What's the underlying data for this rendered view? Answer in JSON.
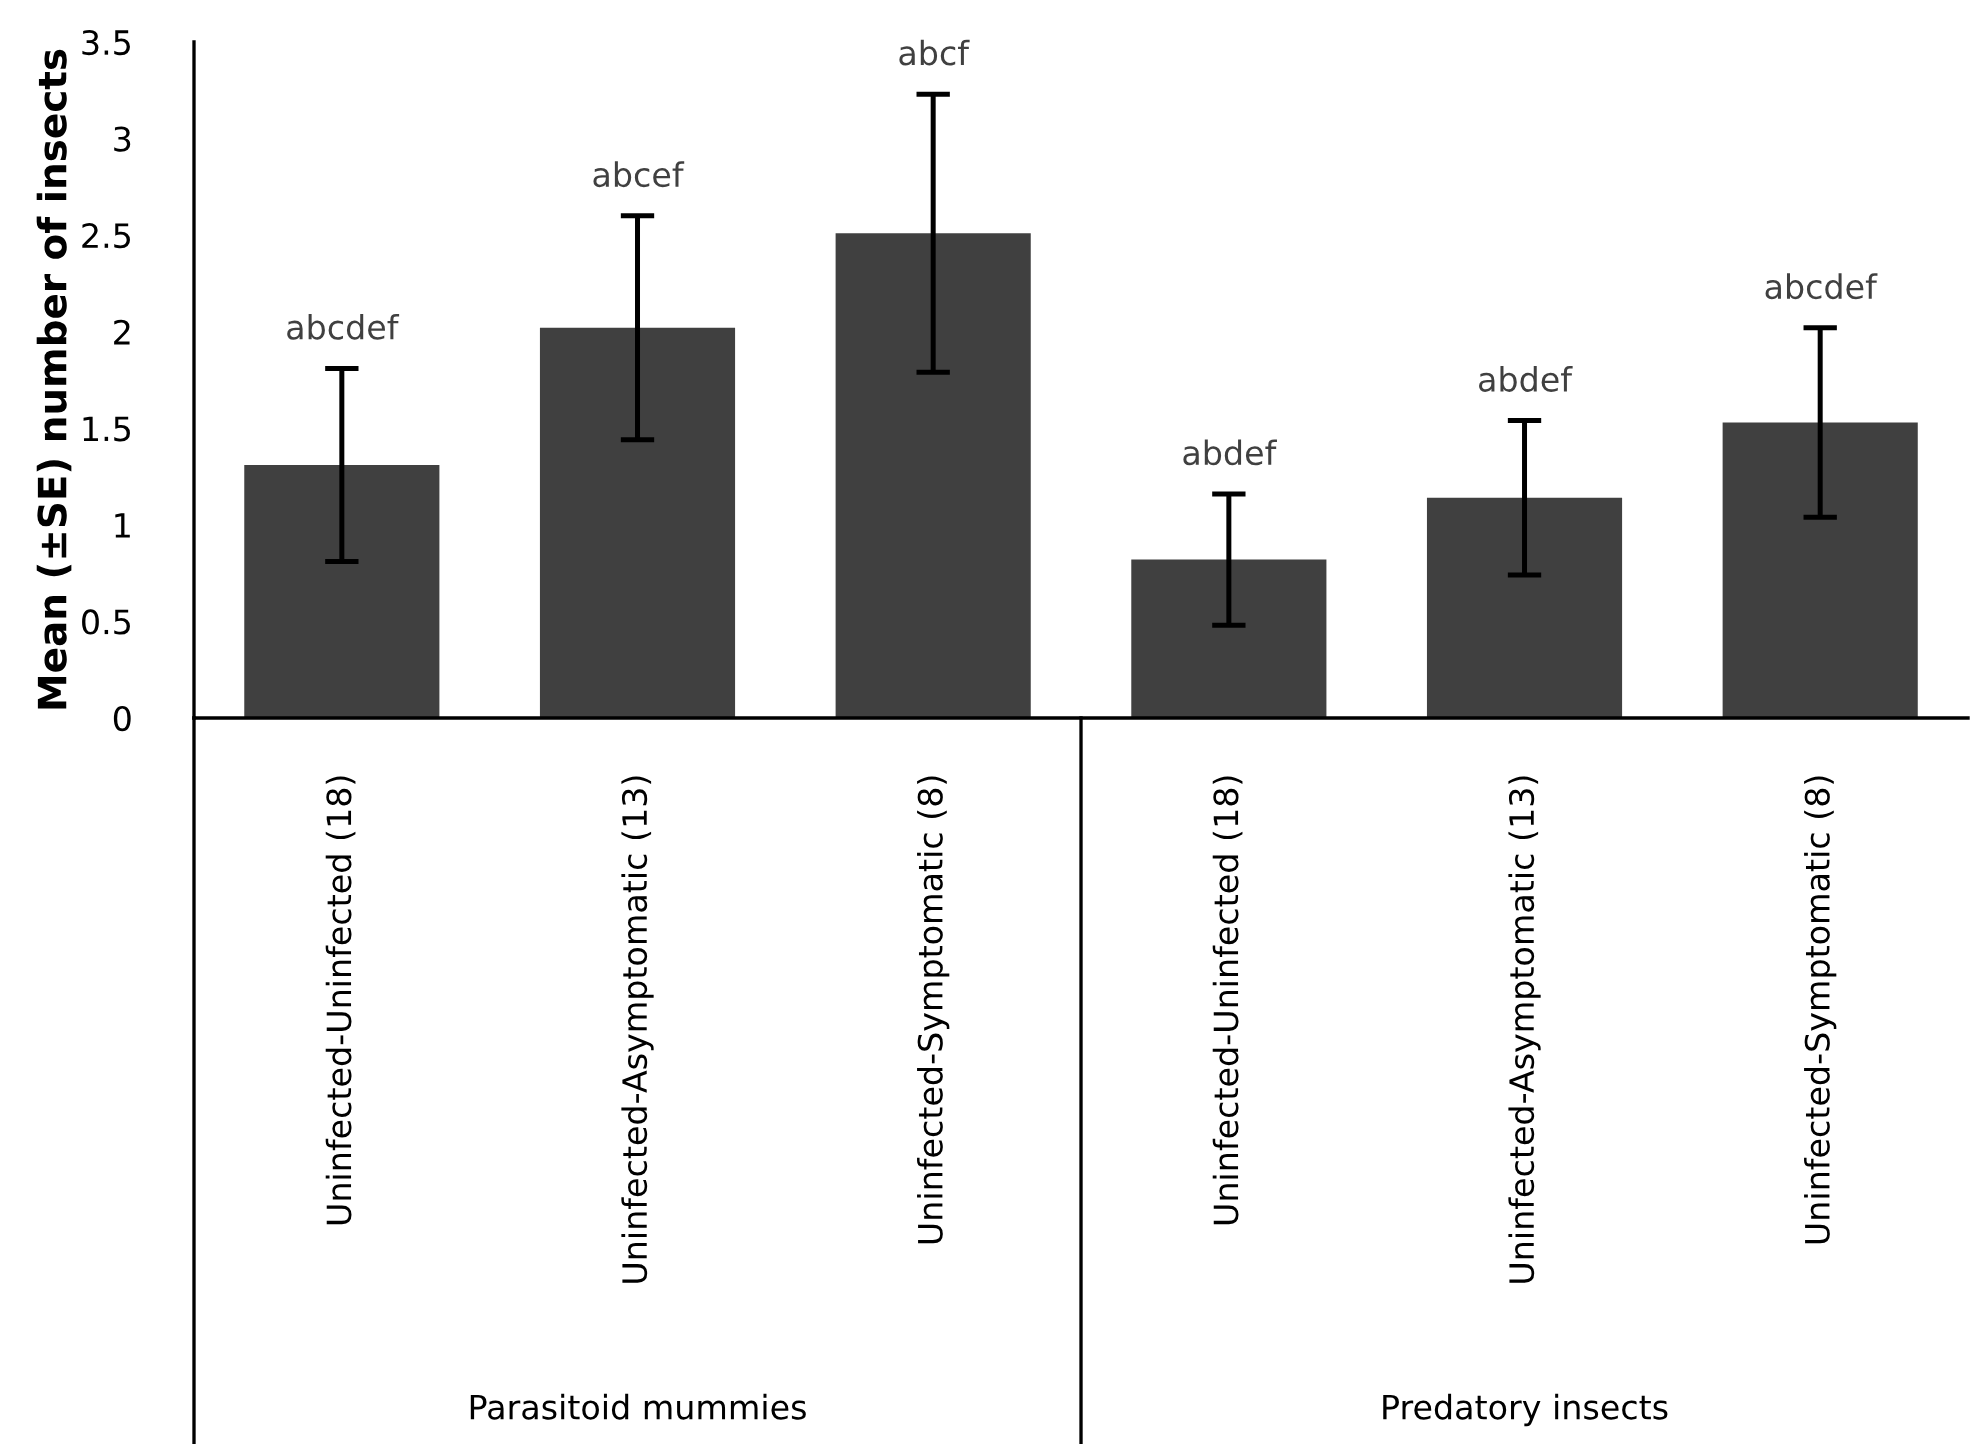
{
  "chart_data": {
    "type": "bar",
    "ylabel": "Mean (±SE) number of insects",
    "categories": [
      "Uninfected-Uninfected (18)",
      "Uninfected-Asymptomatic (13)",
      "Uninfected-Symptomatic (8)",
      "Uninfected-Uninfected (18)",
      "Uninfected-Asymptomatic (13)",
      "Uninfected-Symptomatic (8)"
    ],
    "values": [
      1.31,
      2.02,
      2.51,
      0.82,
      1.14,
      1.53
    ],
    "errors": [
      0.5,
      0.58,
      0.72,
      0.34,
      0.4,
      0.49
    ],
    "color": "#404040",
    "annotations": [
      "Parasitoid mummies",
      "Predatory insects",
      {
        "text": "abcdef",
        "y": 1.81
      },
      {
        "text": "abcef",
        "y": 2.6
      },
      {
        "text": "abcf",
        "y": 3.23
      },
      {
        "text": "abdef",
        "y": 1.16
      },
      {
        "text": "abdef",
        "y": 1.54
      },
      {
        "text": "abcdef",
        "y": 2.02
      }
    ],
    "ylim": [
      0,
      3.5
    ],
    "yticks": [
      0,
      0.5,
      1,
      1.5,
      2,
      2.5,
      3,
      3.5
    ],
    "grid": false,
    "legend": false
  }
}
